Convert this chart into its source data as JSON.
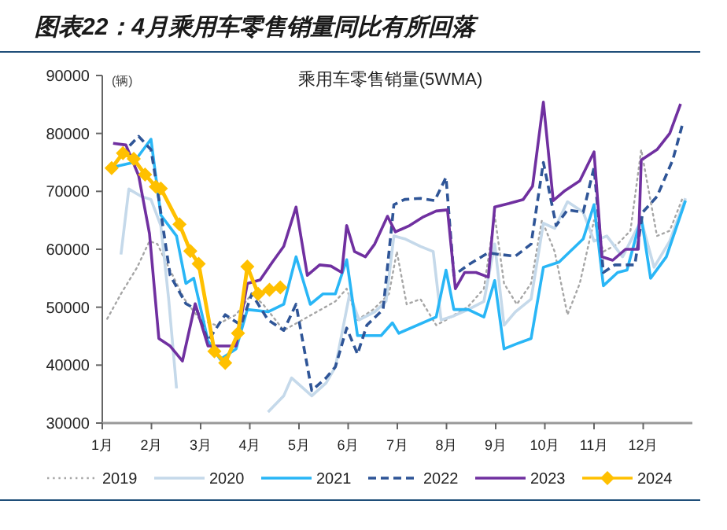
{
  "chart_data": {
    "type": "line",
    "title": "图表22：4月乘用车零售销量同比有所回落",
    "subtitle": "乘用车零售销量(5WMA)",
    "ylabel": "(辆)",
    "xlim": [
      1,
      13
    ],
    "xticks": [
      {
        "value": 1,
        "label": "1月"
      },
      {
        "value": 2,
        "label": "2月"
      },
      {
        "value": 3,
        "label": "3月"
      },
      {
        "value": 4,
        "label": "4月"
      },
      {
        "value": 5,
        "label": "5月"
      },
      {
        "value": 6,
        "label": "6月"
      },
      {
        "value": 7,
        "label": "7月"
      },
      {
        "value": 8,
        "label": "8月"
      },
      {
        "value": 9,
        "label": "9月"
      },
      {
        "value": 10,
        "label": "10月"
      },
      {
        "value": 11,
        "label": "11月"
      },
      {
        "value": 12,
        "label": "12月"
      }
    ],
    "ylim": [
      30000,
      90000
    ],
    "yticks": [
      30000,
      40000,
      50000,
      60000,
      70000,
      80000,
      90000
    ],
    "grid": false,
    "legend": "bottom",
    "series": [
      {
        "name": "2019",
        "color": "#a6a6a6",
        "line_style": "dotted",
        "x": [
          1.1,
          1.38,
          1.71,
          1.96,
          2.12,
          2.35,
          2.67,
          2.99,
          3.31,
          3.72,
          4.04,
          4.27,
          4.69,
          5.74,
          5.97,
          6.19,
          6.51,
          6.83,
          6.99,
          7.19,
          7.47,
          7.79,
          7.99,
          8.44,
          8.76,
          8.98,
          9.17,
          9.43,
          9.72,
          9.94,
          10.2,
          10.46,
          10.71,
          11.0,
          11.19,
          11.48,
          11.74,
          11.96,
          12.28,
          12.54,
          12.79
        ],
        "values": [
          48000,
          52300,
          56900,
          61400,
          60900,
          56900,
          51400,
          47800,
          46900,
          48700,
          52300,
          50500,
          46000,
          51000,
          53200,
          47800,
          49600,
          52300,
          59600,
          50500,
          51400,
          46900,
          47800,
          50100,
          53200,
          65900,
          54100,
          50500,
          54100,
          65000,
          59600,
          48700,
          54100,
          65000,
          59600,
          60900,
          63200,
          77200,
          62300,
          63200,
          68600
        ]
      },
      {
        "name": "2020",
        "color": "#c5d9ea",
        "line_style": "solid",
        "x": [
          1.38,
          1.54,
          1.8,
          1.99,
          2.19,
          2.35,
          2.51,
          3.4,
          4.37,
          4.69,
          4.85,
          5.26,
          5.55,
          5.74,
          6.03,
          6.22,
          6.54,
          6.77,
          6.93,
          7.15,
          7.47,
          7.73,
          7.89,
          8.15,
          8.44,
          8.76,
          8.98,
          9.17,
          9.4,
          9.72,
          9.97,
          10.2,
          10.46,
          10.78,
          11.0,
          11.26,
          11.58,
          11.96,
          12.22,
          12.54,
          12.86
        ],
        "values": [
          59100,
          70400,
          69100,
          68600,
          64100,
          51400,
          36000,
          null,
          31900,
          34700,
          37800,
          34700,
          36900,
          39700,
          52300,
          47800,
          49200,
          51000,
          62300,
          61800,
          60500,
          59600,
          47800,
          48500,
          49600,
          51000,
          60900,
          46900,
          49200,
          51400,
          64500,
          63600,
          68200,
          66400,
          61400,
          62300,
          58700,
          65000,
          56900,
          61400,
          68800
        ]
      },
      {
        "name": "2021",
        "color": "#29b6f6",
        "line_style": "solid",
        "x": [
          1.22,
          1.64,
          1.99,
          2.19,
          2.51,
          2.7,
          2.86,
          3.15,
          3.4,
          3.72,
          3.95,
          4.37,
          4.69,
          4.94,
          5.23,
          5.49,
          5.74,
          5.97,
          6.19,
          6.67,
          6.9,
          7.03,
          7.79,
          7.99,
          8.15,
          8.44,
          8.76,
          8.98,
          9.17,
          9.43,
          9.72,
          9.97,
          10.29,
          10.78,
          11.0,
          11.19,
          11.48,
          11.67,
          11.96,
          12.15,
          12.47,
          12.86
        ],
        "values": [
          74200,
          75000,
          79000,
          65900,
          62300,
          54100,
          55000,
          44200,
          41000,
          42800,
          49600,
          49200,
          50500,
          58700,
          50500,
          52300,
          52300,
          58200,
          45100,
          45100,
          47300,
          45500,
          48300,
          56400,
          49600,
          49600,
          48300,
          54600,
          42800,
          43700,
          44600,
          56900,
          57800,
          61800,
          67700,
          53700,
          56000,
          56400,
          65500,
          55000,
          58700,
          68400
        ]
      },
      {
        "name": "2022",
        "color": "#2f5597",
        "line_style": "dashed",
        "x": [
          1.38,
          1.74,
          1.99,
          2.12,
          2.38,
          2.7,
          2.92,
          3.15,
          3.5,
          3.82,
          4.04,
          4.37,
          4.69,
          4.94,
          5.26,
          5.55,
          5.74,
          5.97,
          6.19,
          6.38,
          6.71,
          6.93,
          7.15,
          7.47,
          7.76,
          7.99,
          8.15,
          8.44,
          8.85,
          9.08,
          9.4,
          9.72,
          9.97,
          10.23,
          10.46,
          10.78,
          11.0,
          11.19,
          11.42,
          11.83,
          11.99,
          12.28,
          12.6,
          12.79
        ],
        "values": [
          76300,
          79500,
          77200,
          70400,
          55500,
          50600,
          49600,
          44200,
          48700,
          46900,
          52300,
          47800,
          46000,
          50500,
          35600,
          37800,
          39700,
          46400,
          41900,
          46900,
          49600,
          67700,
          68600,
          68800,
          68400,
          72400,
          55500,
          57300,
          59400,
          59100,
          58800,
          60900,
          75000,
          64100,
          66800,
          66400,
          74100,
          56000,
          57300,
          57300,
          66400,
          69100,
          75400,
          81300
        ]
      },
      {
        "name": "2023",
        "color": "#7030a0",
        "line_style": "solid",
        "x": [
          1.22,
          1.48,
          1.74,
          1.96,
          2.15,
          2.38,
          2.63,
          2.89,
          3.15,
          3.4,
          3.72,
          3.95,
          4.21,
          4.46,
          4.69,
          4.94,
          5.17,
          5.42,
          5.65,
          5.87,
          5.97,
          6.13,
          6.35,
          6.54,
          6.8,
          6.96,
          7.25,
          7.51,
          7.79,
          8.02,
          8.18,
          8.37,
          8.6,
          8.85,
          8.98,
          9.27,
          9.56,
          9.75,
          9.97,
          10.17,
          10.39,
          10.71,
          11.0,
          11.16,
          11.38,
          11.64,
          11.9,
          11.96,
          12.28,
          12.54,
          12.76
        ],
        "values": [
          78300,
          78000,
          72700,
          62700,
          44600,
          43300,
          40700,
          50600,
          43300,
          43300,
          43300,
          54100,
          54700,
          57800,
          60500,
          67300,
          55500,
          57300,
          57100,
          56000,
          64100,
          59600,
          58700,
          60900,
          65700,
          63000,
          64100,
          65500,
          66600,
          66800,
          53200,
          56000,
          56000,
          55200,
          67300,
          67900,
          68600,
          70900,
          85400,
          68400,
          70000,
          71800,
          76800,
          58700,
          58100,
          60000,
          60000,
          75400,
          77200,
          80000,
          85100
        ]
      },
      {
        "name": "2024",
        "color": "#ffc000",
        "line_style": "solid",
        "marker": "diamond",
        "x": [
          1.19,
          1.42,
          1.64,
          1.87,
          2.09,
          2.19,
          2.57,
          2.79,
          2.96,
          3.28,
          3.5,
          3.76,
          3.95,
          4.17,
          4.4,
          4.62
        ],
        "values": [
          74000,
          76600,
          75600,
          72900,
          70800,
          70500,
          64300,
          59700,
          57500,
          42400,
          40400,
          45500,
          57000,
          52300,
          53000,
          53400
        ]
      }
    ]
  }
}
